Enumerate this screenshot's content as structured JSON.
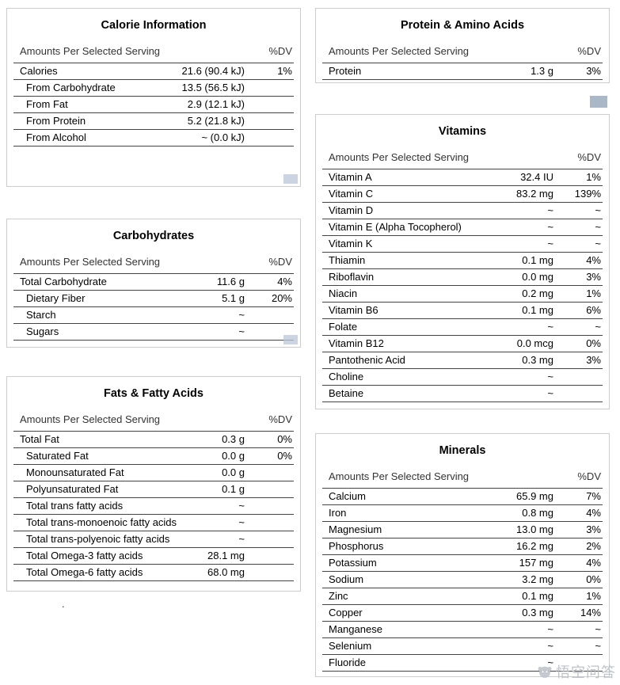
{
  "labels": {
    "amounts_header": "Amounts Per Selected Serving",
    "dv_header": "%DV"
  },
  "panels": [
    {
      "id": "calorie-information",
      "title": "Calorie Information",
      "rows": [
        {
          "label": "Calories",
          "value": "21.6 (90.4 kJ)",
          "dv": "1%",
          "indent": false
        },
        {
          "label": "From Carbohydrate",
          "value": "13.5 (56.5 kJ)",
          "dv": "",
          "indent": true
        },
        {
          "label": "From Fat",
          "value": "2.9 (12.1 kJ)",
          "dv": "",
          "indent": true
        },
        {
          "label": "From Protein",
          "value": "5.2 (21.8 kJ)",
          "dv": "",
          "indent": true
        },
        {
          "label": "From Alcohol",
          "value": "~ (0.0 kJ)",
          "dv": "",
          "indent": true
        }
      ]
    },
    {
      "id": "carbohydrates",
      "title": "Carbohydrates",
      "rows": [
        {
          "label": "Total Carbohydrate",
          "value": "11.6 g",
          "dv": "4%",
          "indent": false
        },
        {
          "label": "Dietary Fiber",
          "value": "5.1 g",
          "dv": "20%",
          "indent": true
        },
        {
          "label": "Starch",
          "value": "~",
          "dv": "",
          "indent": true
        },
        {
          "label": "Sugars",
          "value": "~",
          "dv": "",
          "indent": true
        }
      ]
    },
    {
      "id": "fats-fatty-acids",
      "title": "Fats & Fatty Acids",
      "rows": [
        {
          "label": "Total Fat",
          "value": "0.3 g",
          "dv": "0%",
          "indent": false
        },
        {
          "label": "Saturated Fat",
          "value": "0.0 g",
          "dv": "0%",
          "indent": true
        },
        {
          "label": "Monounsaturated Fat",
          "value": "0.0 g",
          "dv": "",
          "indent": true
        },
        {
          "label": "Polyunsaturated Fat",
          "value": "0.1 g",
          "dv": "",
          "indent": true
        },
        {
          "label": "Total trans fatty acids",
          "value": "~",
          "dv": "",
          "indent": true
        },
        {
          "label": "Total trans-monoenoic fatty acids",
          "value": "~",
          "dv": "",
          "indent": true
        },
        {
          "label": "Total trans-polyenoic fatty acids",
          "value": "~",
          "dv": "",
          "indent": true
        },
        {
          "label": "Total Omega-3 fatty acids",
          "value": "28.1 mg",
          "dv": "",
          "indent": true
        },
        {
          "label": "Total Omega-6 fatty acids",
          "value": "68.0 mg",
          "dv": "",
          "indent": true
        }
      ]
    },
    {
      "id": "protein-amino-acids",
      "title": "Protein & Amino Acids",
      "rows": [
        {
          "label": "Protein",
          "value": "1.3 g",
          "dv": "3%",
          "indent": false
        }
      ]
    },
    {
      "id": "vitamins",
      "title": "Vitamins",
      "rows": [
        {
          "label": "Vitamin A",
          "value": "32.4 IU",
          "dv": "1%",
          "indent": false
        },
        {
          "label": "Vitamin C",
          "value": "83.2 mg",
          "dv": "139%",
          "indent": false
        },
        {
          "label": "Vitamin D",
          "value": "~",
          "dv": "~",
          "indent": false
        },
        {
          "label": "Vitamin E (Alpha Tocopherol)",
          "value": "~",
          "dv": "~",
          "indent": false
        },
        {
          "label": "Vitamin K",
          "value": "~",
          "dv": "~",
          "indent": false
        },
        {
          "label": "Thiamin",
          "value": "0.1 mg",
          "dv": "4%",
          "indent": false
        },
        {
          "label": "Riboflavin",
          "value": "0.0 mg",
          "dv": "3%",
          "indent": false
        },
        {
          "label": "Niacin",
          "value": "0.2 mg",
          "dv": "1%",
          "indent": false
        },
        {
          "label": "Vitamin B6",
          "value": "0.1 mg",
          "dv": "6%",
          "indent": false
        },
        {
          "label": "Folate",
          "value": "~",
          "dv": "~",
          "indent": false
        },
        {
          "label": "Vitamin B12",
          "value": "0.0 mcg",
          "dv": "0%",
          "indent": false
        },
        {
          "label": "Pantothenic Acid",
          "value": "0.3 mg",
          "dv": "3%",
          "indent": false
        },
        {
          "label": "Choline",
          "value": "~",
          "dv": "",
          "indent": false
        },
        {
          "label": "Betaine",
          "value": "~",
          "dv": "",
          "indent": false
        }
      ]
    },
    {
      "id": "minerals",
      "title": "Minerals",
      "rows": [
        {
          "label": "Calcium",
          "value": "65.9 mg",
          "dv": "7%",
          "indent": false
        },
        {
          "label": "Iron",
          "value": "0.8 mg",
          "dv": "4%",
          "indent": false
        },
        {
          "label": "Magnesium",
          "value": "13.0 mg",
          "dv": "3%",
          "indent": false
        },
        {
          "label": "Phosphorus",
          "value": "16.2 mg",
          "dv": "2%",
          "indent": false
        },
        {
          "label": "Potassium",
          "value": "157 mg",
          "dv": "4%",
          "indent": false
        },
        {
          "label": "Sodium",
          "value": "3.2 mg",
          "dv": "0%",
          "indent": false
        },
        {
          "label": "Zinc",
          "value": "0.1 mg",
          "dv": "1%",
          "indent": false
        },
        {
          "label": "Copper",
          "value": "0.3 mg",
          "dv": "14%",
          "indent": false
        },
        {
          "label": "Manganese",
          "value": "~",
          "dv": "~",
          "indent": false
        },
        {
          "label": "Selenium",
          "value": "~",
          "dv": "~",
          "indent": false
        },
        {
          "label": "Fluoride",
          "value": "~",
          "dv": "",
          "indent": false
        }
      ]
    }
  ],
  "stray_dot": ".",
  "watermark": {
    "text": "悟空问答"
  },
  "colors": {
    "table_line": "#444444",
    "panel_border": "#cccccc",
    "artifact_blue": "#a9b7c6",
    "artifact_blue_faint": "#b9c6d6",
    "watermark_gray": "#b9bdc4"
  }
}
